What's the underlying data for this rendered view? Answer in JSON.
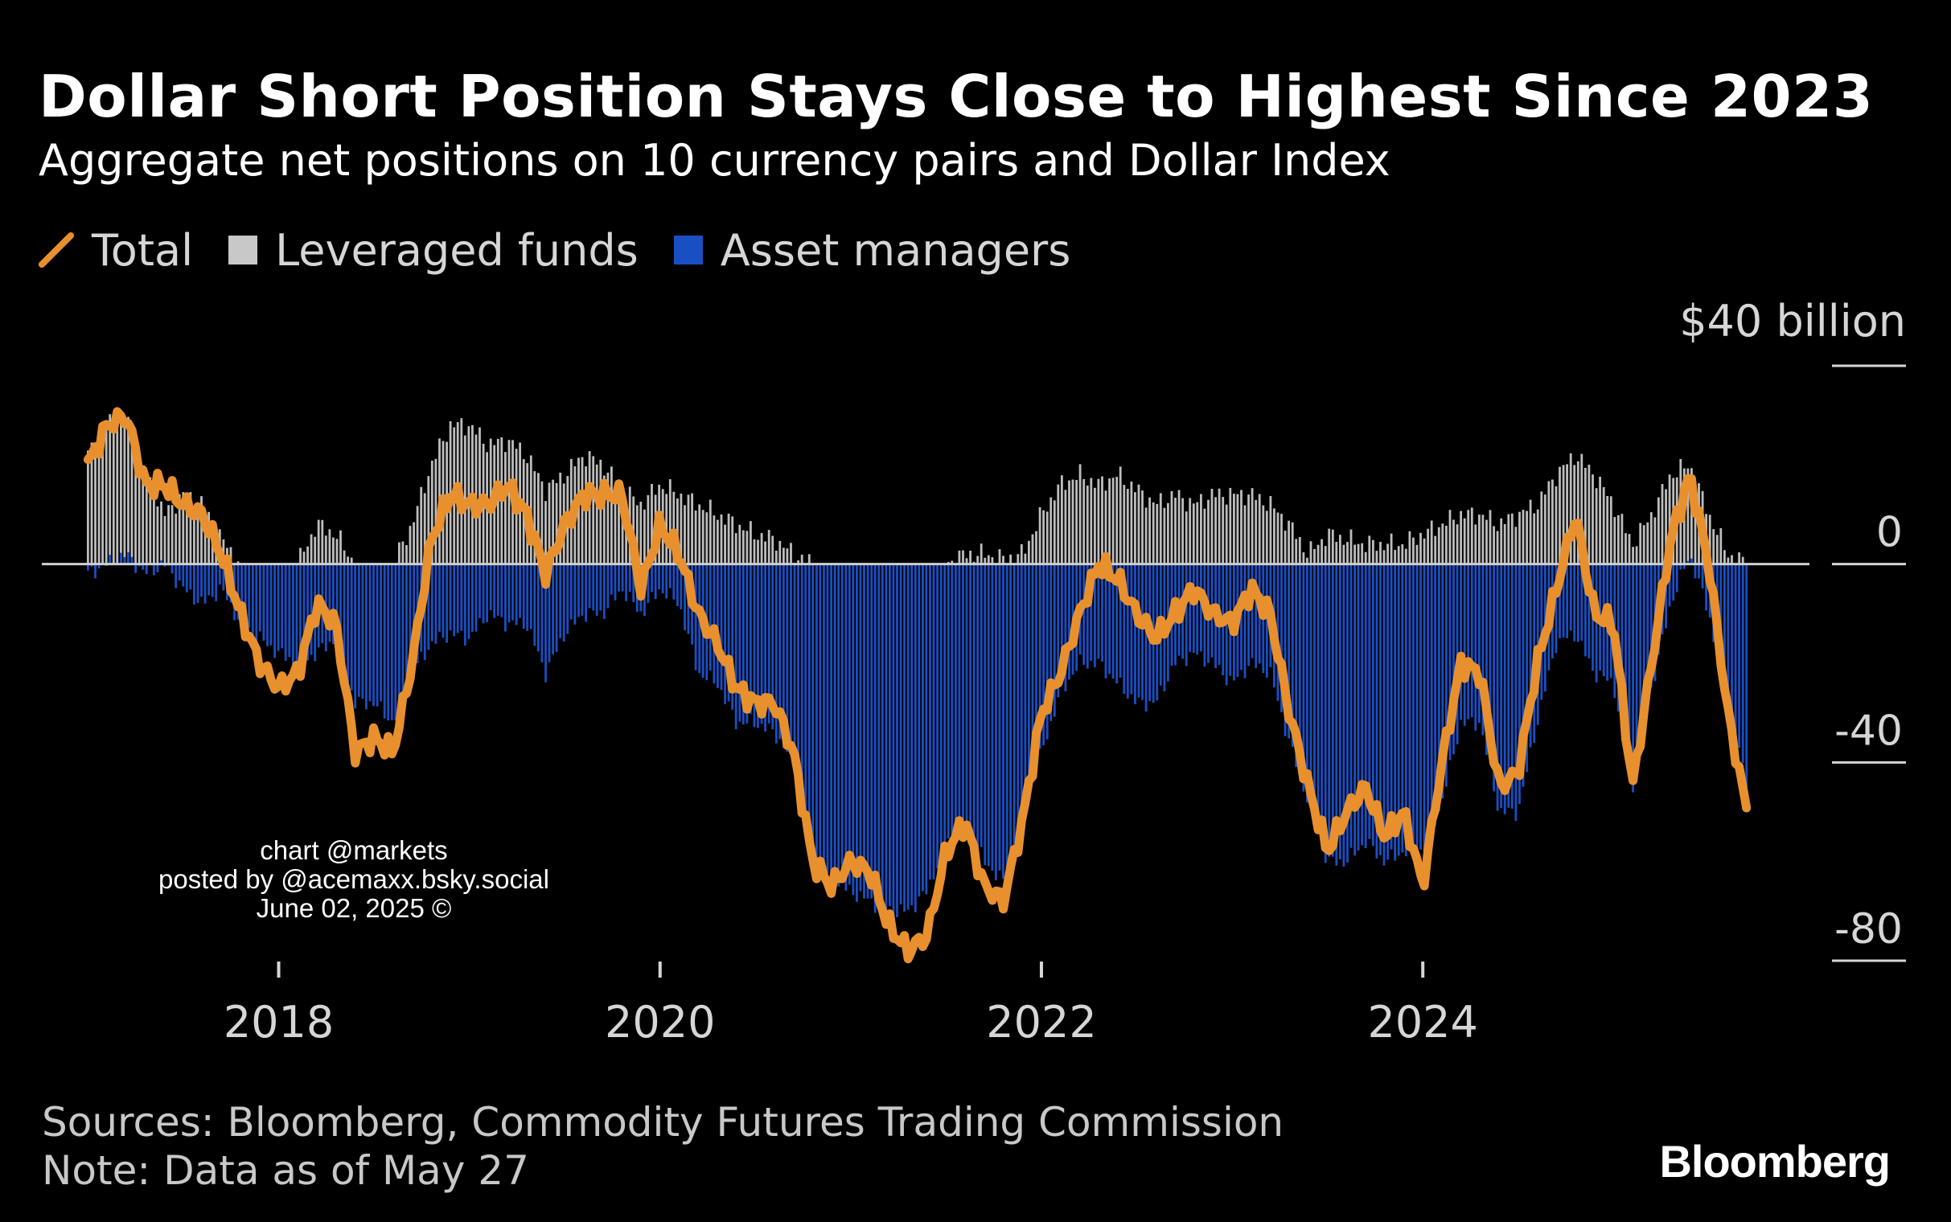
{
  "chart_data": {
    "type": "bar",
    "title": "Dollar Short Position Stays Close to Highest Since 2023",
    "subtitle": "Aggregate net positions on 10 currency pairs and Dollar Index",
    "unit_label": "$40 billion",
    "legend": [
      {
        "name": "Total",
        "kind": "line",
        "color": "#e8902e"
      },
      {
        "name": "Leveraged funds",
        "kind": "bar",
        "color": "#c8c8c8"
      },
      {
        "name": "Asset managers",
        "kind": "bar",
        "color": "#1a4fc4"
      }
    ],
    "legend_position": "top-left",
    "y_axis": {
      "position": "right",
      "ylim": [
        -80,
        40
      ],
      "ticks": [
        40,
        0,
        -40,
        -80
      ],
      "tick_labels": [
        "",
        "0",
        "-40",
        "-80"
      ]
    },
    "x_axis": {
      "xlim": [
        2016.8,
        2025.8
      ],
      "ticks": [
        2018,
        2020,
        2022,
        2024
      ],
      "tick_labels": [
        "2018",
        "2020",
        "2022",
        "2024"
      ]
    },
    "grid": false,
    "series": [
      {
        "name": "Total",
        "type": "line",
        "points": [
          [
            2017.0,
            20
          ],
          [
            2017.1,
            28
          ],
          [
            2017.2,
            30
          ],
          [
            2017.3,
            16
          ],
          [
            2017.4,
            16
          ],
          [
            2017.5,
            12
          ],
          [
            2017.6,
            10
          ],
          [
            2017.7,
            2
          ],
          [
            2017.8,
            -10
          ],
          [
            2017.9,
            -20
          ],
          [
            2018.0,
            -25
          ],
          [
            2018.1,
            -22
          ],
          [
            2018.2,
            -8
          ],
          [
            2018.3,
            -12
          ],
          [
            2018.4,
            -38
          ],
          [
            2018.5,
            -35
          ],
          [
            2018.6,
            -38
          ],
          [
            2018.7,
            -20
          ],
          [
            2018.8,
            5
          ],
          [
            2018.9,
            14
          ],
          [
            2019.0,
            12
          ],
          [
            2019.1,
            12
          ],
          [
            2019.2,
            16
          ],
          [
            2019.3,
            10
          ],
          [
            2019.4,
            -2
          ],
          [
            2019.5,
            8
          ],
          [
            2019.6,
            14
          ],
          [
            2019.7,
            14
          ],
          [
            2019.8,
            14
          ],
          [
            2019.9,
            -5
          ],
          [
            2020.0,
            8
          ],
          [
            2020.1,
            2
          ],
          [
            2020.2,
            -10
          ],
          [
            2020.3,
            -16
          ],
          [
            2020.4,
            -25
          ],
          [
            2020.5,
            -28
          ],
          [
            2020.6,
            -28
          ],
          [
            2020.7,
            -38
          ],
          [
            2020.8,
            -60
          ],
          [
            2020.9,
            -65
          ],
          [
            2021.0,
            -60
          ],
          [
            2021.1,
            -62
          ],
          [
            2021.2,
            -73
          ],
          [
            2021.3,
            -78
          ],
          [
            2021.4,
            -75
          ],
          [
            2021.5,
            -58
          ],
          [
            2021.6,
            -52
          ],
          [
            2021.7,
            -65
          ],
          [
            2021.8,
            -68
          ],
          [
            2021.9,
            -52
          ],
          [
            2022.0,
            -30
          ],
          [
            2022.1,
            -22
          ],
          [
            2022.2,
            -10
          ],
          [
            2022.3,
            0
          ],
          [
            2022.4,
            -3
          ],
          [
            2022.5,
            -10
          ],
          [
            2022.6,
            -15
          ],
          [
            2022.7,
            -10
          ],
          [
            2022.8,
            -5
          ],
          [
            2022.9,
            -10
          ],
          [
            2023.0,
            -12
          ],
          [
            2023.1,
            -5
          ],
          [
            2023.2,
            -10
          ],
          [
            2023.3,
            -30
          ],
          [
            2023.4,
            -45
          ],
          [
            2023.5,
            -58
          ],
          [
            2023.6,
            -50
          ],
          [
            2023.7,
            -45
          ],
          [
            2023.8,
            -55
          ],
          [
            2023.9,
            -50
          ],
          [
            2024.0,
            -65
          ],
          [
            2024.1,
            -40
          ],
          [
            2024.2,
            -20
          ],
          [
            2024.3,
            -22
          ],
          [
            2024.4,
            -45
          ],
          [
            2024.5,
            -42
          ],
          [
            2024.6,
            -20
          ],
          [
            2024.7,
            -5
          ],
          [
            2024.8,
            10
          ],
          [
            2024.9,
            -10
          ],
          [
            2025.0,
            -12
          ],
          [
            2025.1,
            -45
          ],
          [
            2025.2,
            -20
          ],
          [
            2025.3,
            5
          ],
          [
            2025.4,
            18
          ],
          [
            2025.5,
            0
          ],
          [
            2025.6,
            -30
          ],
          [
            2025.7,
            -50
          ]
        ]
      },
      {
        "name": "Leveraged funds",
        "type": "bar",
        "points": [
          [
            2017.0,
            22
          ],
          [
            2017.1,
            28
          ],
          [
            2017.2,
            30
          ],
          [
            2017.3,
            18
          ],
          [
            2017.4,
            10
          ],
          [
            2017.5,
            14
          ],
          [
            2017.6,
            12
          ],
          [
            2017.7,
            5
          ],
          [
            2017.8,
            0
          ],
          [
            2017.9,
            0
          ],
          [
            2018.0,
            0
          ],
          [
            2018.1,
            0
          ],
          [
            2018.2,
            8
          ],
          [
            2018.3,
            6
          ],
          [
            2018.4,
            0
          ],
          [
            2018.5,
            0
          ],
          [
            2018.6,
            0
          ],
          [
            2018.7,
            8
          ],
          [
            2018.8,
            20
          ],
          [
            2018.9,
            28
          ],
          [
            2019.0,
            28
          ],
          [
            2019.1,
            24
          ],
          [
            2019.2,
            25
          ],
          [
            2019.3,
            22
          ],
          [
            2019.4,
            15
          ],
          [
            2019.5,
            18
          ],
          [
            2019.6,
            22
          ],
          [
            2019.7,
            20
          ],
          [
            2019.8,
            15
          ],
          [
            2019.9,
            12
          ],
          [
            2020.0,
            16
          ],
          [
            2020.1,
            14
          ],
          [
            2020.2,
            12
          ],
          [
            2020.3,
            10
          ],
          [
            2020.4,
            8
          ],
          [
            2020.5,
            6
          ],
          [
            2020.6,
            5
          ],
          [
            2020.7,
            2
          ],
          [
            2020.8,
            0
          ],
          [
            2020.9,
            0
          ],
          [
            2021.0,
            0
          ],
          [
            2021.1,
            0
          ],
          [
            2021.2,
            0
          ],
          [
            2021.3,
            0
          ],
          [
            2021.4,
            0
          ],
          [
            2021.5,
            0
          ],
          [
            2021.6,
            2
          ],
          [
            2021.7,
            2
          ],
          [
            2021.8,
            1
          ],
          [
            2021.9,
            2
          ],
          [
            2022.0,
            10
          ],
          [
            2022.1,
            16
          ],
          [
            2022.2,
            18
          ],
          [
            2022.3,
            16
          ],
          [
            2022.4,
            18
          ],
          [
            2022.5,
            15
          ],
          [
            2022.6,
            12
          ],
          [
            2022.7,
            14
          ],
          [
            2022.8,
            12
          ],
          [
            2022.9,
            14
          ],
          [
            2023.0,
            14
          ],
          [
            2023.1,
            14
          ],
          [
            2023.2,
            12
          ],
          [
            2023.3,
            8
          ],
          [
            2023.4,
            2
          ],
          [
            2023.5,
            6
          ],
          [
            2023.6,
            5
          ],
          [
            2023.7,
            4
          ],
          [
            2023.8,
            4
          ],
          [
            2023.9,
            4
          ],
          [
            2024.0,
            6
          ],
          [
            2024.1,
            8
          ],
          [
            2024.2,
            10
          ],
          [
            2024.3,
            10
          ],
          [
            2024.4,
            8
          ],
          [
            2024.5,
            10
          ],
          [
            2024.6,
            12
          ],
          [
            2024.7,
            18
          ],
          [
            2024.8,
            22
          ],
          [
            2024.9,
            18
          ],
          [
            2025.0,
            12
          ],
          [
            2025.1,
            4
          ],
          [
            2025.2,
            10
          ],
          [
            2025.3,
            18
          ],
          [
            2025.4,
            20
          ],
          [
            2025.5,
            10
          ],
          [
            2025.6,
            2
          ],
          [
            2025.7,
            0
          ]
        ]
      },
      {
        "name": "Asset managers",
        "type": "bar",
        "points": [
          [
            2017.0,
            -2
          ],
          [
            2017.1,
            0
          ],
          [
            2017.2,
            2
          ],
          [
            2017.3,
            -2
          ],
          [
            2017.4,
            0
          ],
          [
            2017.5,
            -5
          ],
          [
            2017.6,
            -8
          ],
          [
            2017.7,
            -5
          ],
          [
            2017.8,
            -12
          ],
          [
            2017.9,
            -15
          ],
          [
            2018.0,
            -18
          ],
          [
            2018.1,
            -20
          ],
          [
            2018.2,
            -18
          ],
          [
            2018.3,
            -15
          ],
          [
            2018.4,
            -28
          ],
          [
            2018.5,
            -28
          ],
          [
            2018.6,
            -32
          ],
          [
            2018.7,
            -22
          ],
          [
            2018.8,
            -16
          ],
          [
            2018.9,
            -14
          ],
          [
            2019.0,
            -15
          ],
          [
            2019.1,
            -10
          ],
          [
            2019.2,
            -12
          ],
          [
            2019.3,
            -12
          ],
          [
            2019.4,
            -22
          ],
          [
            2019.5,
            -14
          ],
          [
            2019.6,
            -10
          ],
          [
            2019.7,
            -10
          ],
          [
            2019.8,
            -5
          ],
          [
            2019.9,
            -10
          ],
          [
            2020.0,
            -5
          ],
          [
            2020.1,
            -8
          ],
          [
            2020.2,
            -22
          ],
          [
            2020.3,
            -24
          ],
          [
            2020.4,
            -32
          ],
          [
            2020.5,
            -32
          ],
          [
            2020.6,
            -34
          ],
          [
            2020.7,
            -40
          ],
          [
            2020.8,
            -58
          ],
          [
            2020.9,
            -64
          ],
          [
            2021.0,
            -66
          ],
          [
            2021.1,
            -68
          ],
          [
            2021.2,
            -70
          ],
          [
            2021.3,
            -70
          ],
          [
            2021.4,
            -66
          ],
          [
            2021.5,
            -56
          ],
          [
            2021.6,
            -52
          ],
          [
            2021.7,
            -60
          ],
          [
            2021.8,
            -64
          ],
          [
            2021.9,
            -50
          ],
          [
            2022.0,
            -38
          ],
          [
            2022.1,
            -26
          ],
          [
            2022.2,
            -20
          ],
          [
            2022.3,
            -20
          ],
          [
            2022.4,
            -24
          ],
          [
            2022.5,
            -28
          ],
          [
            2022.6,
            -28
          ],
          [
            2022.7,
            -20
          ],
          [
            2022.8,
            -18
          ],
          [
            2022.9,
            -20
          ],
          [
            2023.0,
            -24
          ],
          [
            2023.1,
            -20
          ],
          [
            2023.2,
            -22
          ],
          [
            2023.3,
            -36
          ],
          [
            2023.4,
            -48
          ],
          [
            2023.5,
            -60
          ],
          [
            2023.6,
            -60
          ],
          [
            2023.7,
            -56
          ],
          [
            2023.8,
            -60
          ],
          [
            2023.9,
            -58
          ],
          [
            2024.0,
            -58
          ],
          [
            2024.1,
            -48
          ],
          [
            2024.2,
            -32
          ],
          [
            2024.3,
            -32
          ],
          [
            2024.4,
            -50
          ],
          [
            2024.5,
            -50
          ],
          [
            2024.6,
            -32
          ],
          [
            2024.7,
            -16
          ],
          [
            2024.8,
            -14
          ],
          [
            2024.9,
            -22
          ],
          [
            2025.0,
            -24
          ],
          [
            2025.1,
            -46
          ],
          [
            2025.2,
            -25
          ],
          [
            2025.3,
            -8
          ],
          [
            2025.4,
            2
          ],
          [
            2025.5,
            -10
          ],
          [
            2025.6,
            -30
          ],
          [
            2025.7,
            -44
          ]
        ]
      }
    ]
  },
  "watermark": {
    "line1": "chart @markets",
    "line2": "posted by @acemaxx.bsky.social",
    "line3": "June 02, 2025 ©"
  },
  "footer": {
    "sources": "Sources: Bloomberg, Commodity Futures Trading Commission",
    "note": "Note: Data as of May 27",
    "brand": "Bloomberg"
  }
}
